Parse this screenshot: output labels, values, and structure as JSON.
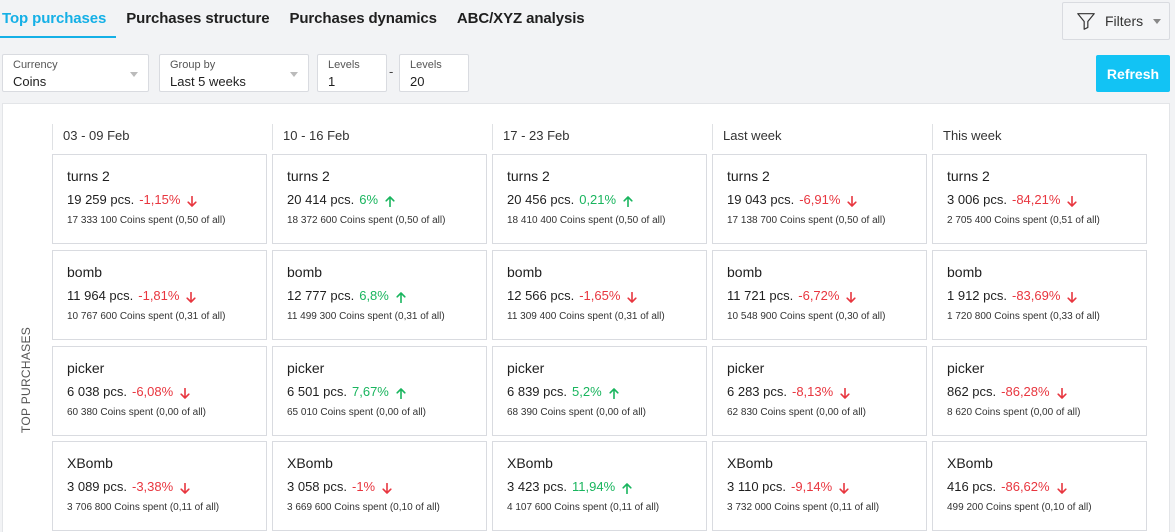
{
  "tabs": [
    {
      "label": "Top purchases",
      "active": true
    },
    {
      "label": "Purchases structure",
      "active": false
    },
    {
      "label": "Purchases dynamics",
      "active": false
    },
    {
      "label": "ABC/XYZ analysis",
      "active": false
    }
  ],
  "filters": {
    "label": "Filters",
    "icon": "funnel-icon"
  },
  "controls": {
    "currency": {
      "label": "Currency",
      "value": "Coins"
    },
    "group_by": {
      "label": "Group by",
      "value": "Last 5 weeks"
    },
    "levels_from": {
      "label": "Levels",
      "value": "1"
    },
    "levels_to": {
      "label": "Levels",
      "value": "20"
    },
    "separator": "-",
    "refresh_label": "Refresh"
  },
  "panel": {
    "side_label": "TOP PURCHASES",
    "columns": [
      "03 - 09 Feb",
      "10 - 16 Feb",
      "17 - 23 Feb",
      "Last week",
      "This week"
    ],
    "rows": [
      {
        "name": "turns 2",
        "cells": [
          {
            "pcs": "19 259 pcs.",
            "pct": "-1,15%",
            "dir": "down",
            "spent": "17 333 100 Coins spent (0,50 of all)"
          },
          {
            "pcs": "20 414 pcs.",
            "pct": "6%",
            "dir": "up",
            "spent": "18 372 600 Coins spent (0,50 of all)"
          },
          {
            "pcs": "20 456 pcs.",
            "pct": "0,21%",
            "dir": "up",
            "spent": "18 410 400 Coins spent (0,50 of all)"
          },
          {
            "pcs": "19 043 pcs.",
            "pct": "-6,91%",
            "dir": "down",
            "spent": "17 138 700 Coins spent (0,50 of all)"
          },
          {
            "pcs": "3 006 pcs.",
            "pct": "-84,21%",
            "dir": "down",
            "spent": "2 705 400 Coins spent (0,51 of all)"
          }
        ]
      },
      {
        "name": "bomb",
        "cells": [
          {
            "pcs": "11 964 pcs.",
            "pct": "-1,81%",
            "dir": "down",
            "spent": "10 767 600 Coins spent (0,31 of all)"
          },
          {
            "pcs": "12 777 pcs.",
            "pct": "6,8%",
            "dir": "up",
            "spent": "11 499 300 Coins spent (0,31 of all)"
          },
          {
            "pcs": "12 566 pcs.",
            "pct": "-1,65%",
            "dir": "down",
            "spent": "11 309 400 Coins spent (0,31 of all)"
          },
          {
            "pcs": "11 721 pcs.",
            "pct": "-6,72%",
            "dir": "down",
            "spent": "10 548 900 Coins spent (0,30 of all)"
          },
          {
            "pcs": "1 912 pcs.",
            "pct": "-83,69%",
            "dir": "down",
            "spent": "1 720 800 Coins spent (0,33 of all)"
          }
        ]
      },
      {
        "name": "picker",
        "cells": [
          {
            "pcs": "6 038 pcs.",
            "pct": "-6,08%",
            "dir": "down",
            "spent": "60 380 Coins spent (0,00 of all)"
          },
          {
            "pcs": "6 501 pcs.",
            "pct": "7,67%",
            "dir": "up",
            "spent": "65 010 Coins spent (0,00 of all)"
          },
          {
            "pcs": "6 839 pcs.",
            "pct": "5,2%",
            "dir": "up",
            "spent": "68 390 Coins spent (0,00 of all)"
          },
          {
            "pcs": "6 283 pcs.",
            "pct": "-8,13%",
            "dir": "down",
            "spent": "62 830 Coins spent (0,00 of all)"
          },
          {
            "pcs": "862 pcs.",
            "pct": "-86,28%",
            "dir": "down",
            "spent": "8 620 Coins spent (0,00 of all)"
          }
        ]
      },
      {
        "name": "XBomb",
        "cells": [
          {
            "pcs": "3 089 pcs.",
            "pct": "-3,38%",
            "dir": "down",
            "spent": "3 706 800 Coins spent (0,11 of all)"
          },
          {
            "pcs": "3 058 pcs.",
            "pct": "-1%",
            "dir": "down",
            "spent": "3 669 600 Coins spent (0,10 of all)"
          },
          {
            "pcs": "3 423 pcs.",
            "pct": "11,94%",
            "dir": "up",
            "spent": "4 107 600 Coins spent (0,11 of all)"
          },
          {
            "pcs": "3 110 pcs.",
            "pct": "-9,14%",
            "dir": "down",
            "spent": "3 732 000 Coins spent (0,11 of all)"
          },
          {
            "pcs": "416 pcs.",
            "pct": "-86,62%",
            "dir": "down",
            "spent": "499 200 Coins spent (0,10 of all)"
          }
        ]
      }
    ]
  },
  "colors": {
    "accent": "#15b0e6",
    "refresh": "#12c3f4",
    "down": "#e8363f",
    "up": "#19b55e"
  }
}
